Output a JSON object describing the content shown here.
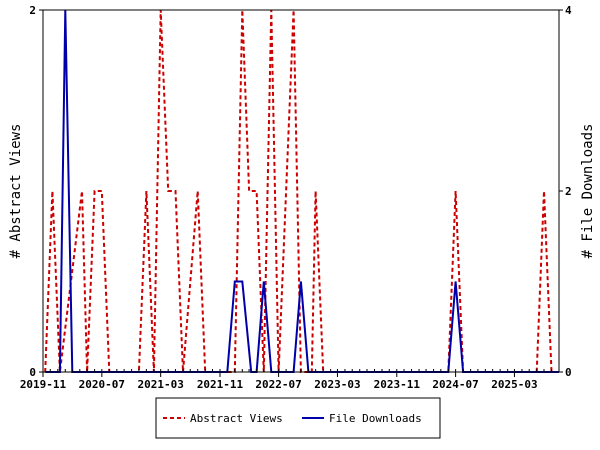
{
  "chart_data": {
    "type": "line",
    "ylabel_left": "# Abstract Views",
    "ylabel_right": "# File Downloads",
    "x_start": "2019-11",
    "x_end": "2025-09",
    "x_ticks": [
      "2019-11",
      "2020-07",
      "2021-03",
      "2021-11",
      "2022-07",
      "2023-03",
      "2023-11",
      "2024-07",
      "2025-03"
    ],
    "y_left": {
      "ylim": [
        0,
        2
      ],
      "ticks": [
        "0",
        "2"
      ]
    },
    "y_right": {
      "ylim": [
        0,
        4
      ],
      "ticks": [
        "0",
        "2",
        "4"
      ]
    },
    "grid": false,
    "legend_position": "bottom-center",
    "series": [
      {
        "name": "Abstract Views",
        "axis": "left",
        "color": "#cc0000",
        "style": "dashed",
        "points": [
          [
            "2019-11-10",
            0
          ],
          [
            "2019-12-10",
            1
          ],
          [
            "2020-01-10",
            0
          ],
          [
            "2020-04-10",
            1
          ],
          [
            "2020-05-01",
            0
          ],
          [
            "2020-06-01",
            1
          ],
          [
            "2020-07-01",
            1
          ],
          [
            "2020-08-01",
            0
          ],
          [
            "2020-12-01",
            0
          ],
          [
            "2021-01-01",
            1
          ],
          [
            "2021-02-01",
            0
          ],
          [
            "2021-03-01",
            2
          ],
          [
            "2021-04-01",
            1
          ],
          [
            "2021-05-01",
            1
          ],
          [
            "2021-06-01",
            0
          ],
          [
            "2021-08-01",
            1
          ],
          [
            "2021-09-01",
            0
          ],
          [
            "2022-01-01",
            0
          ],
          [
            "2022-02-01",
            2
          ],
          [
            "2022-03-01",
            1
          ],
          [
            "2022-04-01",
            1
          ],
          [
            "2022-05-01",
            0
          ],
          [
            "2022-06-01",
            2
          ],
          [
            "2022-07-01",
            0
          ],
          [
            "2022-08-01",
            1
          ],
          [
            "2022-09-01",
            2
          ],
          [
            "2022-10-01",
            0
          ],
          [
            "2022-11-15",
            0
          ],
          [
            "2022-12-01",
            1
          ],
          [
            "2023-01-01",
            0
          ],
          [
            "2024-06-01",
            0
          ],
          [
            "2024-07-01",
            1
          ],
          [
            "2024-08-01",
            0
          ],
          [
            "2025-06-01",
            0
          ],
          [
            "2025-07-01",
            1
          ],
          [
            "2025-08-01",
            0
          ]
        ]
      },
      {
        "name": "File Downloads",
        "axis": "right",
        "color": "#0000aa",
        "style": "solid",
        "points": [
          [
            "2019-11-10",
            0
          ],
          [
            "2020-01-10",
            0
          ],
          [
            "2020-02-01",
            4
          ],
          [
            "2020-03-01",
            0
          ],
          [
            "2021-12-01",
            0
          ],
          [
            "2022-01-01",
            1
          ],
          [
            "2022-02-01",
            1
          ],
          [
            "2022-03-10",
            0
          ],
          [
            "2022-04-01",
            0
          ],
          [
            "2022-05-01",
            1
          ],
          [
            "2022-06-01",
            0
          ],
          [
            "2022-09-01",
            0
          ],
          [
            "2022-10-01",
            1
          ],
          [
            "2022-11-01",
            0
          ],
          [
            "2024-06-01",
            0
          ],
          [
            "2024-07-01",
            1
          ],
          [
            "2024-08-01",
            0
          ],
          [
            "2025-09-01",
            0
          ]
        ]
      }
    ]
  }
}
